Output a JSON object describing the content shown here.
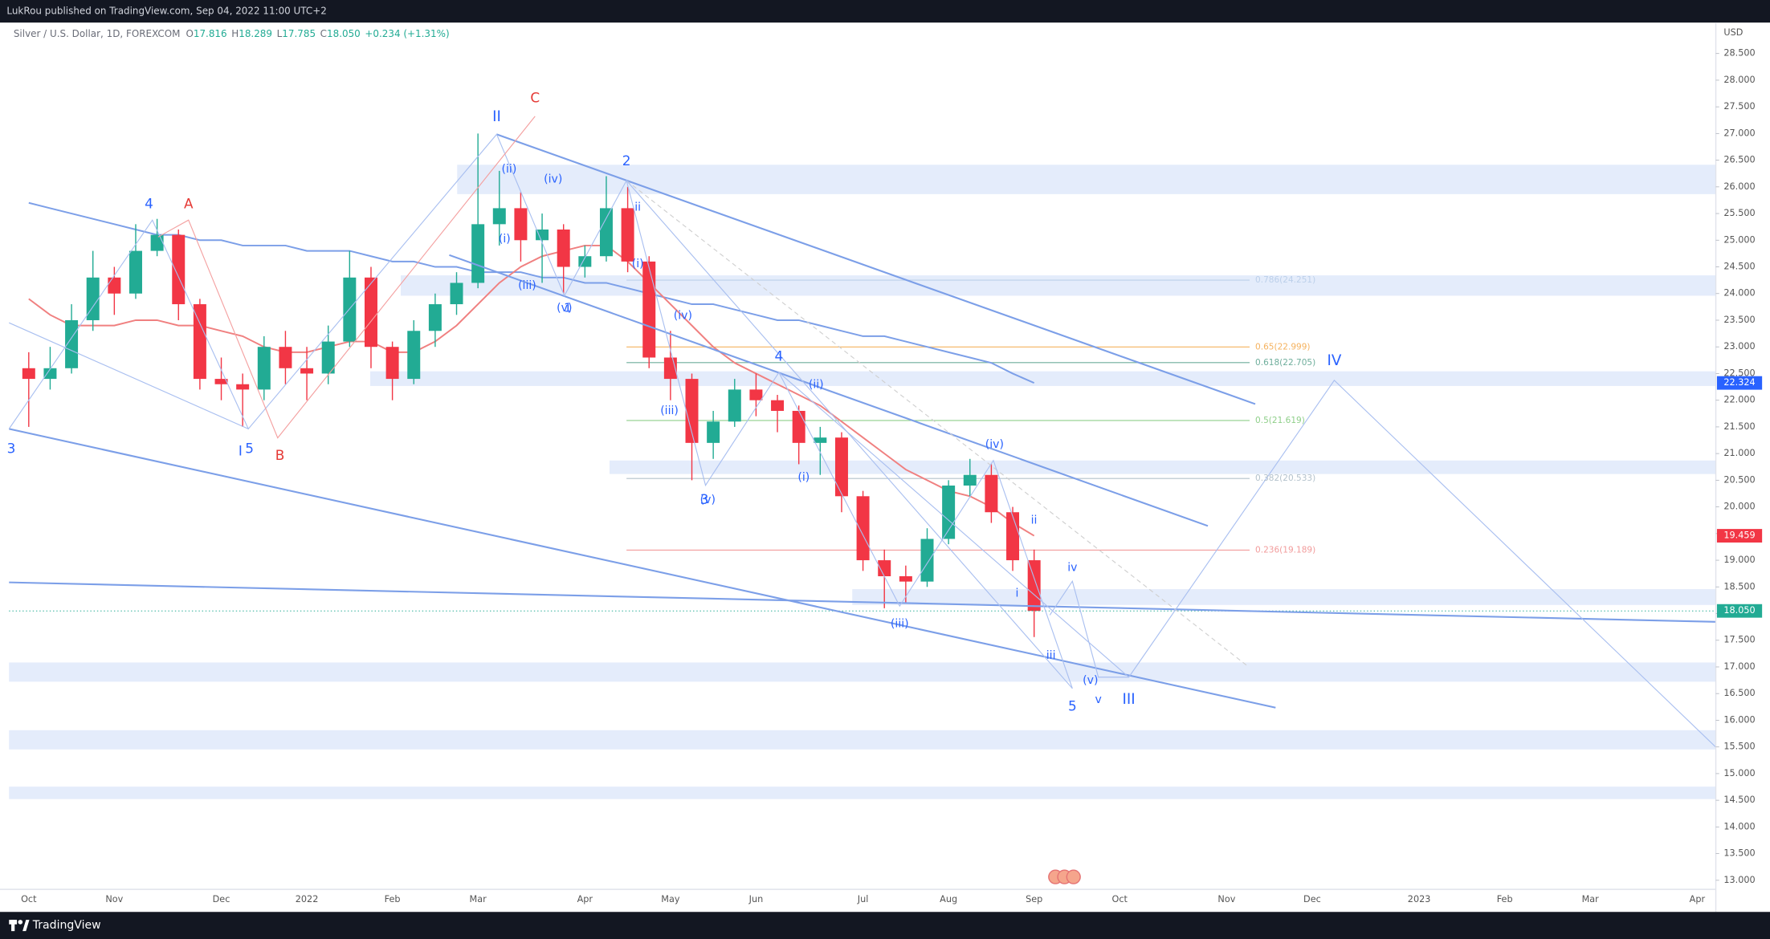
{
  "header": {
    "publisher": "LukRou published on TradingView.com, Sep 04, 2022 11:00 UTC+2"
  },
  "legend": {
    "symbol": "Silver / U.S. Dollar, 1D, FOREXCOM",
    "fields": [
      {
        "key": "O",
        "value": "17.816"
      },
      {
        "key": "H",
        "value": "18.289"
      },
      {
        "key": "L",
        "value": "17.785"
      },
      {
        "key": "C",
        "value": "18.050"
      }
    ],
    "change": "+0.234 (+1.31%)"
  },
  "footer": {
    "brand": "TradingView"
  },
  "chart_data": {
    "type": "candlestick",
    "y_axis_unit": "USD",
    "up_color": "#22ab94",
    "down_color": "#f23645",
    "grid": false,
    "categories": [
      "Oct",
      null,
      null,
      null,
      "Nov",
      null,
      null,
      null,
      null,
      "Dec",
      null,
      null,
      null,
      "2022",
      null,
      null,
      null,
      "Feb",
      null,
      null,
      null,
      "Mar",
      null,
      null,
      null,
      null,
      "Apr",
      null,
      null,
      null,
      "May",
      null,
      null,
      null,
      "Jun",
      null,
      null,
      null,
      null,
      "Jul",
      null,
      null,
      null,
      "Aug",
      null,
      null,
      null,
      "Sep",
      null,
      null,
      null,
      "Oct",
      null,
      null,
      null,
      null,
      "Nov",
      null,
      null,
      null,
      "Dec",
      null,
      null,
      null,
      null,
      "2023",
      null,
      null,
      null,
      "Feb",
      null,
      null,
      null,
      "Mar",
      null,
      null,
      null,
      null,
      "Apr"
    ],
    "open": [
      22.6,
      22.4,
      22.6,
      23.5,
      24.3,
      24.0,
      24.8,
      25.1,
      23.8,
      22.4,
      22.3,
      22.2,
      23.0,
      22.6,
      22.5,
      23.1,
      24.3,
      23.0,
      22.4,
      23.3,
      23.8,
      24.2,
      25.3,
      25.6,
      25.0,
      25.2,
      24.5,
      24.7,
      25.6,
      24.6,
      22.8,
      22.4,
      21.2,
      21.6,
      22.2,
      22.0,
      21.8,
      21.2,
      21.3,
      20.2,
      19.0,
      18.7,
      18.6,
      19.4,
      20.4,
      20.6,
      19.9,
      19.0,
      null,
      null,
      null,
      null,
      null,
      null,
      null,
      null,
      null,
      null,
      null,
      null,
      null,
      null,
      null,
      null,
      null,
      null,
      null,
      null,
      null,
      null,
      null,
      null,
      null,
      null,
      null,
      null,
      null,
      null,
      null
    ],
    "high": [
      22.9,
      23.0,
      23.8,
      24.8,
      24.5,
      25.3,
      25.4,
      25.2,
      23.9,
      22.8,
      22.5,
      23.2,
      23.3,
      23.0,
      23.4,
      24.8,
      24.5,
      23.1,
      23.5,
      24.0,
      24.4,
      27.0,
      26.3,
      25.9,
      25.5,
      25.3,
      24.9,
      26.2,
      26.0,
      24.7,
      23.3,
      22.5,
      21.8,
      22.4,
      22.5,
      22.1,
      21.9,
      21.5,
      21.4,
      20.3,
      19.2,
      18.9,
      19.6,
      20.5,
      20.9,
      20.8,
      20.0,
      19.2,
      null,
      null,
      null,
      null,
      null,
      null,
      null,
      null,
      null,
      null,
      null,
      null,
      null,
      null,
      null,
      null,
      null,
      null,
      null,
      null,
      null,
      null,
      null,
      null,
      null,
      null,
      null,
      null,
      null,
      null,
      null
    ],
    "low": [
      21.5,
      22.2,
      22.5,
      23.3,
      23.6,
      23.9,
      24.7,
      23.5,
      22.2,
      22.0,
      21.5,
      22.0,
      22.3,
      22.0,
      22.3,
      23.0,
      22.6,
      22.0,
      22.3,
      23.0,
      23.6,
      24.1,
      24.9,
      24.6,
      24.2,
      24.0,
      24.3,
      24.6,
      24.4,
      22.6,
      22.0,
      20.5,
      20.9,
      21.5,
      21.7,
      21.4,
      20.8,
      20.6,
      19.9,
      18.8,
      18.1,
      18.2,
      18.5,
      19.3,
      20.2,
      19.7,
      18.8,
      17.56,
      null,
      null,
      null,
      null,
      null,
      null,
      null,
      null,
      null,
      null,
      null,
      null,
      null,
      null,
      null,
      null,
      null,
      null,
      null,
      null,
      null,
      null,
      null,
      null,
      null,
      null,
      null,
      null,
      null,
      null,
      null
    ],
    "close": [
      22.4,
      22.6,
      23.5,
      24.3,
      24.0,
      24.8,
      25.1,
      23.8,
      22.4,
      22.3,
      22.2,
      23.0,
      22.6,
      22.5,
      23.1,
      24.3,
      23.0,
      22.4,
      23.3,
      23.8,
      24.2,
      25.3,
      25.6,
      25.0,
      25.2,
      24.5,
      24.7,
      25.6,
      24.6,
      22.8,
      22.4,
      21.2,
      21.6,
      22.2,
      22.0,
      21.8,
      21.2,
      21.3,
      20.2,
      19.0,
      18.7,
      18.6,
      19.4,
      20.4,
      20.6,
      19.9,
      19.0,
      18.05,
      null,
      null,
      null,
      null,
      null,
      null,
      null,
      null,
      null,
      null,
      null,
      null,
      null,
      null,
      null,
      null,
      null,
      null,
      null,
      null,
      null,
      null,
      null,
      null,
      null,
      null,
      null,
      null,
      null,
      null,
      null
    ],
    "moving_averages": [
      {
        "color": "#7c9fe8",
        "values": [
          25.7,
          25.6,
          25.5,
          25.4,
          25.3,
          25.2,
          25.1,
          25.1,
          25.0,
          25.0,
          24.9,
          24.9,
          24.9,
          24.8,
          24.8,
          24.8,
          24.7,
          24.6,
          24.6,
          24.5,
          24.5,
          24.4,
          24.4,
          24.4,
          24.3,
          24.3,
          24.2,
          24.2,
          24.1,
          24.0,
          23.9,
          23.8,
          23.8,
          23.7,
          23.6,
          23.5,
          23.5,
          23.4,
          23.3,
          23.2,
          23.2,
          23.1,
          23.0,
          22.9,
          22.8,
          22.7,
          22.5,
          22.324,
          null,
          null,
          null,
          null,
          null,
          null,
          null,
          null,
          null,
          null,
          null,
          null,
          null,
          null,
          null,
          null,
          null,
          null,
          null,
          null,
          null,
          null,
          null,
          null,
          null,
          null,
          null,
          null,
          null,
          null,
          null
        ]
      },
      {
        "color": "#f08080",
        "values": [
          23.9,
          23.6,
          23.4,
          23.4,
          23.4,
          23.5,
          23.5,
          23.4,
          23.4,
          23.3,
          23.2,
          23.0,
          22.9,
          22.9,
          23.0,
          23.1,
          23.1,
          22.9,
          22.9,
          23.1,
          23.4,
          23.8,
          24.2,
          24.5,
          24.7,
          24.8,
          24.9,
          24.9,
          24.6,
          24.2,
          23.8,
          23.4,
          23.0,
          22.7,
          22.5,
          22.3,
          22.1,
          21.9,
          21.6,
          21.3,
          21.0,
          20.7,
          20.5,
          20.3,
          20.2,
          20.0,
          19.7,
          19.459,
          null,
          null,
          null,
          null,
          null,
          null,
          null,
          null,
          null,
          null,
          null,
          null,
          null,
          null,
          null,
          null,
          null,
          null,
          null,
          null,
          null,
          null,
          null,
          null,
          null,
          null,
          null,
          null,
          null,
          null,
          null
        ]
      }
    ],
    "ylim": [
      12.83,
      29.08
    ],
    "yticks": [
      {
        "value": 13,
        "label": "13.000"
      },
      {
        "value": 13.5,
        "label": "13.500"
      },
      {
        "value": 14,
        "label": "14.000"
      },
      {
        "value": 14.5,
        "label": "14.500"
      },
      {
        "value": 15,
        "label": "15.000"
      },
      {
        "value": 15.5,
        "label": "15.500"
      },
      {
        "value": 16,
        "label": "16.000"
      },
      {
        "value": 16.5,
        "label": "16.500"
      },
      {
        "value": 17,
        "label": "17.000"
      },
      {
        "value": 17.5,
        "label": "17.500"
      },
      {
        "value": 18,
        "label": "18.000"
      },
      {
        "value": 18.5,
        "label": "18.500"
      },
      {
        "value": 19,
        "label": "19.000"
      },
      {
        "value": 19.5,
        "label": "19.500"
      },
      {
        "value": 20,
        "label": "20.000"
      },
      {
        "value": 20.5,
        "label": "20.500"
      },
      {
        "value": 21,
        "label": "21.000"
      },
      {
        "value": 21.5,
        "label": "21.500"
      },
      {
        "value": 22,
        "label": "22.000"
      },
      {
        "value": 22.5,
        "label": "22.500"
      },
      {
        "value": 23,
        "label": "23.000"
      },
      {
        "value": 23.5,
        "label": "23.500"
      },
      {
        "value": 24,
        "label": "24.000"
      },
      {
        "value": 24.5,
        "label": "24.500"
      },
      {
        "value": 25,
        "label": "25.000"
      },
      {
        "value": 25.5,
        "label": "25.500"
      },
      {
        "value": 26,
        "label": "26.000"
      },
      {
        "value": 26.5,
        "label": "26.500"
      },
      {
        "value": 27,
        "label": "27.000"
      },
      {
        "value": 27.5,
        "label": "27.500"
      },
      {
        "value": 28,
        "label": "28.000"
      },
      {
        "value": 28.5,
        "label": "28.500"
      }
    ],
    "fib_levels": [
      {
        "label": "0.786(24.251)",
        "price": 24.251,
        "color": "#bcd0ea"
      },
      {
        "label": "0.65(22.999)",
        "price": 22.999,
        "color": "#f5b25e"
      },
      {
        "label": "0.618(22.705)",
        "price": 22.705,
        "color": "#6fae9c"
      },
      {
        "label": "0.5(21.619)",
        "price": 21.619,
        "color": "#8fcf8a"
      },
      {
        "label": "0.382(20.533)",
        "price": 20.533,
        "color": "#b4c2cc"
      },
      {
        "label": "0.236(19.189)",
        "price": 19.189,
        "color": "#f29c9c"
      }
    ],
    "price_tags": [
      {
        "value": 22.324,
        "color": "#2962ff"
      },
      {
        "value": 19.459,
        "color": "#f23645"
      },
      {
        "value": {
          "value": 18.05,
          "label": "18.050"
        },
        "color": "#22ab94",
        "line": "dotted"
      }
    ],
    "annotations": [
      {
        "text": "3",
        "color": "#2962ff"
      },
      {
        "text": "4",
        "color": "#2962ff"
      },
      {
        "text": "A",
        "color": "#e53935"
      },
      {
        "text": "I",
        "color": "#2962ff"
      },
      {
        "text": "5",
        "color": "#2962ff"
      },
      {
        "text": "B",
        "color": "#e53935"
      },
      {
        "text": "II",
        "color": "#2962ff"
      },
      {
        "text": "C",
        "color": "#e53935"
      },
      {
        "text": "(ii)",
        "color": "#2962ff"
      },
      {
        "text": "(iv)",
        "color": "#2962ff"
      },
      {
        "text": "(i)",
        "color": "#2962ff"
      },
      {
        "text": "(iii)",
        "color": "#2962ff"
      },
      {
        "text": "(v)",
        "color": "#2962ff"
      },
      {
        "text": "1",
        "color": "#2962ff"
      },
      {
        "text": "2",
        "color": "#2962ff"
      },
      {
        "text": "ii",
        "color": "#2962ff"
      },
      {
        "text": "(i)",
        "color": "#2962ff"
      },
      {
        "text": "(iv)",
        "color": "#2962ff"
      },
      {
        "text": "(iii)",
        "color": "#2962ff"
      },
      {
        "text": "3",
        "color": "#2962ff"
      },
      {
        "text": "(v)",
        "color": "#2962ff"
      },
      {
        "text": "4",
        "color": "#2962ff"
      },
      {
        "text": "(ii)",
        "color": "#2962ff"
      },
      {
        "text": "(i)",
        "color": "#2962ff"
      },
      {
        "text": "(iii)",
        "color": "#2962ff"
      },
      {
        "text": "(iv)",
        "color": "#2962ff"
      },
      {
        "text": "ii",
        "color": "#2962ff"
      },
      {
        "text": "i",
        "color": "#2962ff"
      },
      {
        "text": "iv",
        "color": "#2962ff"
      },
      {
        "text": "iii",
        "color": "#2962ff"
      },
      {
        "text": "(v)",
        "color": "#2962ff"
      },
      {
        "text": "v",
        "color": "#2962ff"
      },
      {
        "text": "5",
        "color": "#2962ff"
      },
      {
        "text": "III",
        "color": "#2962ff"
      },
      {
        "text": "IV",
        "color": "#2962ff"
      }
    ]
  }
}
